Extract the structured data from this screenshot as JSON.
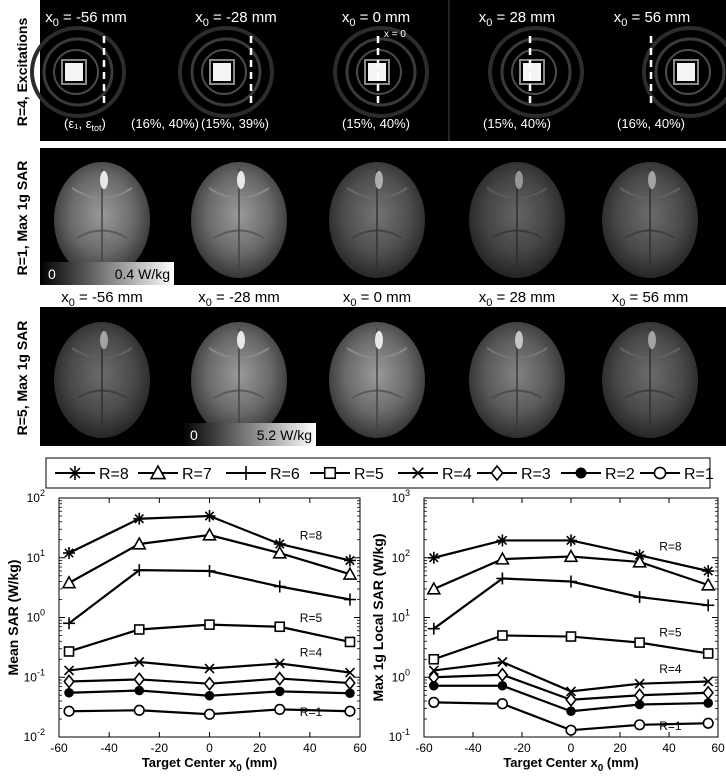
{
  "row_labels": {
    "r4": "R=4, Excitations",
    "r1": "R=1, Max 1g SAR",
    "r5": "R=5, Max 1g SAR"
  },
  "positions": [
    "-56",
    "-28",
    "0",
    "28",
    "56"
  ],
  "position_unit": "mm",
  "zero_marker": "x = 0",
  "errors": [
    "(16%, 40%)",
    "(15%, 39%)",
    "(15%, 40%)",
    "(15%, 40%)",
    "(16%, 40%)"
  ],
  "error_legend_text": "(ε₁, ε",
  "error_legend_sub": "tot",
  "colorbar_r1": {
    "min": "0",
    "max": "0.4 W/kg"
  },
  "colorbar_r5": {
    "min": "0",
    "max": "5.2 W/kg"
  },
  "legend": [
    "R=8",
    "R=7",
    "R=6",
    "R=5",
    "R=4",
    "R=3",
    "R=2",
    "R=1"
  ],
  "chart_data": [
    {
      "type": "line",
      "xlabel": "Target Center x0 (mm)",
      "ylabel": "Mean SAR (W/kg)",
      "log_y": true,
      "xlim": [
        -60,
        60
      ],
      "ylim": [
        0.01,
        100
      ],
      "xticks": [
        "-60",
        "-40",
        "-20",
        "0",
        "20",
        "40",
        "60"
      ],
      "yticks": [
        "10-2",
        "10-1",
        "100",
        "101",
        "102"
      ],
      "x": [
        -56,
        -28,
        0,
        28,
        56
      ],
      "series": [
        {
          "name": "R=8",
          "values": [
            12,
            45,
            50,
            17,
            9
          ]
        },
        {
          "name": "R=7",
          "values": [
            3.8,
            17,
            24,
            12,
            5.3
          ]
        },
        {
          "name": "R=6",
          "values": [
            0.8,
            6.2,
            6.0,
            3.3,
            2.0
          ]
        },
        {
          "name": "R=5",
          "values": [
            0.27,
            0.63,
            0.76,
            0.7,
            0.39
          ]
        },
        {
          "name": "R=4",
          "values": [
            0.13,
            0.18,
            0.14,
            0.17,
            0.12
          ]
        },
        {
          "name": "R=3",
          "values": [
            0.085,
            0.092,
            0.078,
            0.095,
            0.08
          ]
        },
        {
          "name": "R=2",
          "values": [
            0.055,
            0.06,
            0.049,
            0.058,
            0.054
          ]
        },
        {
          "name": "R=1",
          "values": [
            0.027,
            0.028,
            0.024,
            0.029,
            0.027
          ]
        }
      ],
      "annotations": [
        "R=8",
        "R=5",
        "R=4",
        "R=1"
      ]
    },
    {
      "type": "line",
      "xlabel": "Target Center x0 (mm)",
      "ylabel": "Max 1g Local SAR (W/kg)",
      "log_y": true,
      "xlim": [
        -60,
        60
      ],
      "ylim": [
        0.1,
        1000
      ],
      "xticks": [
        "-60",
        "-40",
        "-20",
        "0",
        "20",
        "40",
        "60"
      ],
      "yticks": [
        "10-1",
        "100",
        "101",
        "102",
        "103"
      ],
      "x": [
        -56,
        -28,
        0,
        28,
        56
      ],
      "series": [
        {
          "name": "R=8",
          "values": [
            100,
            195,
            195,
            110,
            60
          ]
        },
        {
          "name": "R=7",
          "values": [
            30,
            95,
            105,
            85,
            35
          ]
        },
        {
          "name": "R=6",
          "values": [
            6.5,
            45,
            40,
            22,
            16
          ]
        },
        {
          "name": "R=5",
          "values": [
            2.0,
            5.0,
            4.8,
            3.8,
            2.5
          ]
        },
        {
          "name": "R=4",
          "values": [
            1.3,
            1.8,
            0.58,
            0.78,
            0.85
          ]
        },
        {
          "name": "R=3",
          "values": [
            1.0,
            1.1,
            0.42,
            0.5,
            0.55
          ]
        },
        {
          "name": "R=2",
          "values": [
            0.72,
            0.72,
            0.27,
            0.35,
            0.37
          ]
        },
        {
          "name": "R=1",
          "values": [
            0.38,
            0.36,
            0.13,
            0.16,
            0.17
          ]
        }
      ],
      "annotations": [
        "R=8",
        "R=5",
        "R=4",
        "R=1"
      ]
    }
  ]
}
